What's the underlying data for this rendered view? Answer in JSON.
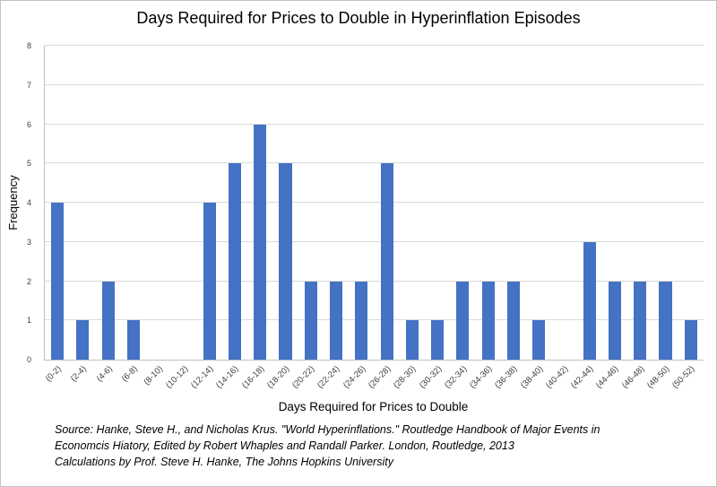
{
  "chart_data": {
    "type": "bar",
    "title": "Days Required for Prices to Double in Hyperinflation Episodes",
    "xlabel": "Days Required for Prices to Double",
    "ylabel": "Frequency",
    "ylim": [
      0,
      8
    ],
    "y_ticks": [
      0,
      1,
      2,
      3,
      4,
      5,
      6,
      7,
      8
    ],
    "grid": true,
    "legend": false,
    "bar_color": "#4472C4",
    "categories": [
      "(0-2)",
      "(2-4)",
      "(4-6)",
      "(6-8)",
      "(8-10)",
      "(10-12)",
      "(12-14)",
      "(14-16)",
      "(16-18)",
      "(18-20)",
      "(20-22)",
      "(22-24)",
      "(24-26)",
      "(26-28)",
      "(28-30)",
      "(30-32)",
      "(32-34)",
      "(34-36)",
      "(36-38)",
      "(38-40)",
      "(40-42)",
      "(42-44)",
      "(44-46)",
      "(46-48)",
      "(48-50)",
      "(50-52)"
    ],
    "values": [
      4,
      1,
      2,
      1,
      0,
      0,
      4,
      5,
      6,
      5,
      2,
      2,
      2,
      5,
      1,
      1,
      2,
      2,
      2,
      1,
      0,
      3,
      2,
      2,
      2,
      1
    ]
  },
  "source": {
    "line1": "Source: Hanke, Steve H., and Nicholas Krus. \"World Hyperinflations.\" Routledge Handbook of Major Events in",
    "line2": "Economcis Hiatory, Edited by Robert Whaples and Randall Parker. London, Routledge, 2013",
    "line3": "Calculations by Prof. Steve H. Hanke, The Johns Hopkins University"
  }
}
